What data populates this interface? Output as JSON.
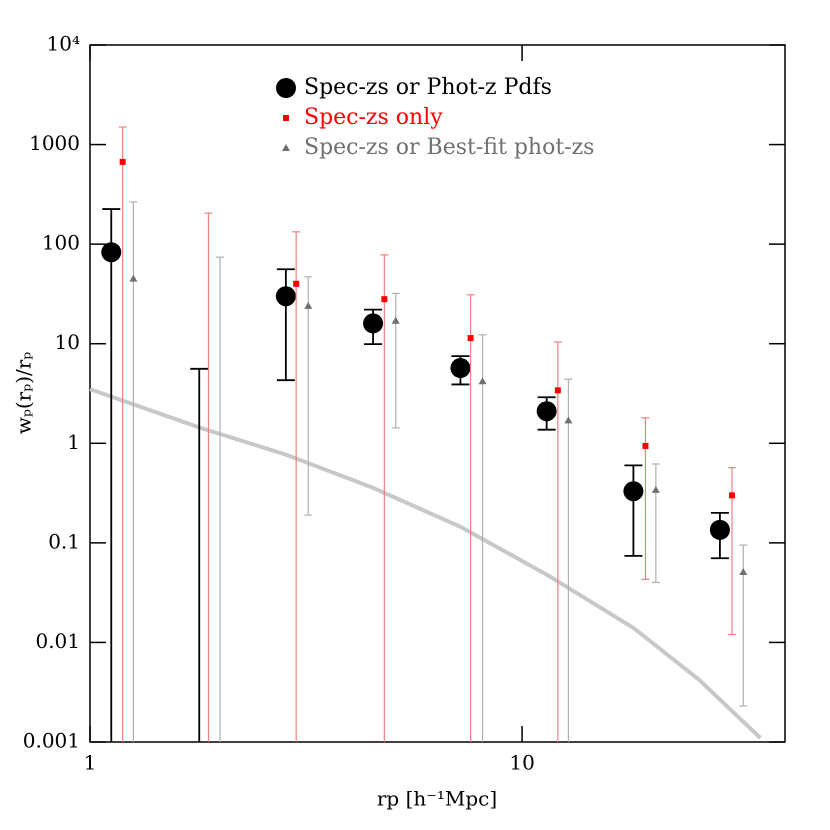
{
  "chart_data": {
    "type": "scatter",
    "xlabel": "rp [h⁻¹Mpc]",
    "ylabel": "wₚ(rₚ)/rₚ",
    "xscale": "log",
    "yscale": "log",
    "xlim": [
      1,
      40.6
    ],
    "ylim": [
      0.001,
      10000
    ],
    "xticks": [
      1,
      10
    ],
    "yticks": [
      {
        "value": 0.001,
        "label": "0.001"
      },
      0.01,
      0.1,
      1,
      10,
      100,
      1000,
      {
        "value": 10000,
        "label": "10⁴"
      }
    ],
    "legend": "top",
    "series": [
      {
        "name": "Spec-zs or Phot-z Pdfs",
        "color": "#000000",
        "errorbar_color": "#000000",
        "marker": "circle",
        "x": [
          1.12,
          1.79,
          2.84,
          4.52,
          7.2,
          11.4,
          18.1,
          28.7
        ],
        "values": [
          83,
          null,
          30,
          16,
          5.7,
          2.1,
          0.33,
          0.135
        ],
        "lower": [
          0.001,
          0.001,
          4.3,
          9.9,
          3.9,
          1.37,
          0.074,
          0.07
        ],
        "upper": [
          225,
          5.6,
          56,
          22,
          7.5,
          2.9,
          0.6,
          0.2
        ]
      },
      {
        "name": "Spec-zs only",
        "color": "#ff0000",
        "errorbar_color": "#f08080",
        "marker": "square",
        "x": [
          1.19,
          1.88,
          3.0,
          4.8,
          7.6,
          12.1,
          19.3,
          30.6
        ],
        "values": [
          670,
          null,
          40,
          28,
          11.4,
          3.4,
          0.94,
          0.3
        ],
        "lower": [
          0.001,
          0.001,
          0.001,
          0.001,
          0.001,
          0.001,
          0.043,
          0.012
        ],
        "upper": [
          1500,
          205,
          133,
          78,
          31,
          10.4,
          1.8,
          0.57
        ]
      },
      {
        "name": "Spec-zs or Best-fit phot-zs",
        "color": "#707070",
        "errorbar_color": "#b0b0b0",
        "marker": "triangle",
        "x": [
          1.26,
          2.0,
          3.2,
          5.1,
          8.1,
          12.8,
          20.4,
          32.5
        ],
        "values": [
          45,
          null,
          24,
          17,
          4.2,
          1.7,
          0.34,
          0.051
        ],
        "lower": [
          0.001,
          0.001,
          0.19,
          1.43,
          0.001,
          0.001,
          0.04,
          0.0023
        ],
        "upper": [
          265,
          74,
          47,
          32,
          12.3,
          4.4,
          0.62,
          0.095
        ]
      }
    ],
    "curve": {
      "color": "#c8c8c8",
      "x": [
        1,
        1.8,
        2.84,
        4.5,
        7.2,
        11.4,
        18.1,
        25.7,
        35.6
      ],
      "values": [
        3.5,
        1.43,
        0.77,
        0.36,
        0.145,
        0.048,
        0.014,
        0.0042,
        0.0011
      ]
    }
  }
}
